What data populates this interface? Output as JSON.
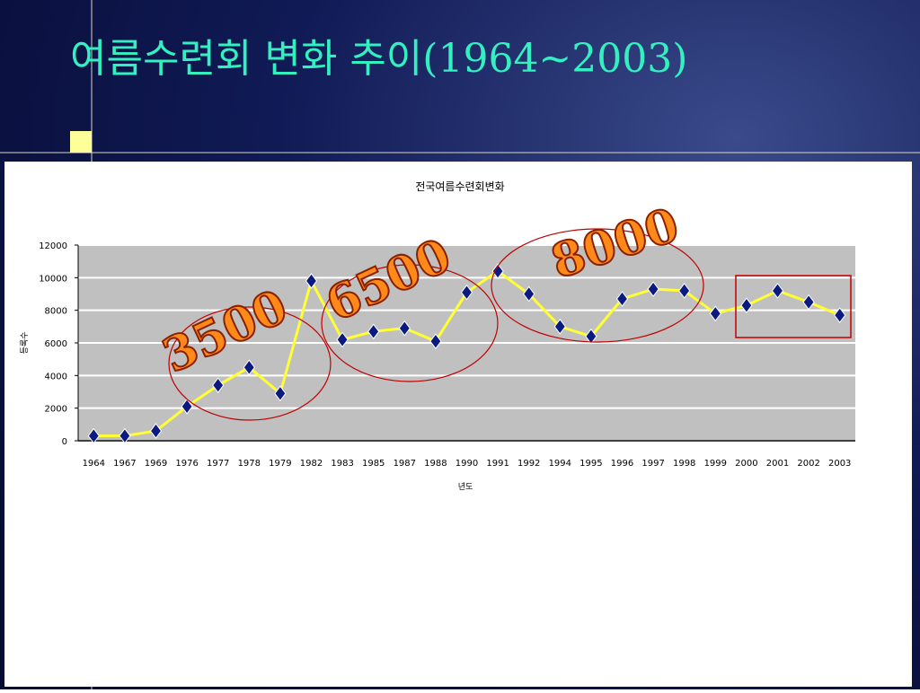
{
  "slide_title": "여름수련회 변화 추이(1964~2003)",
  "chart_data": {
    "type": "line",
    "title": "전국여름수련회변화",
    "x_label": "년도",
    "y_label": "등록수",
    "categories": [
      "1964",
      "1967",
      "1969",
      "1976",
      "1977",
      "1978",
      "1979",
      "1982",
      "1983",
      "1985",
      "1987",
      "1988",
      "1990",
      "1991",
      "1992",
      "1994",
      "1995",
      "1996",
      "1997",
      "1998",
      "1999",
      "2000",
      "2001",
      "2002",
      "2003"
    ],
    "series": [
      {
        "color": "#ffff33",
        "marker_color": "#0a1a80",
        "values": [
          300,
          300,
          600,
          2100,
          3400,
          4500,
          2900,
          9800,
          6200,
          6700,
          6900,
          6100,
          9100,
          10400,
          9000,
          7000,
          6400,
          8700,
          9300,
          9200,
          7800,
          8300,
          9200,
          8500,
          7700
        ]
      }
    ],
    "ylim": [
      0,
      12000
    ],
    "yticks": [
      0,
      2000,
      4000,
      6000,
      8000,
      10000,
      12000
    ],
    "grid": true,
    "annotations": [
      "3500",
      "6500",
      "8000"
    ]
  }
}
